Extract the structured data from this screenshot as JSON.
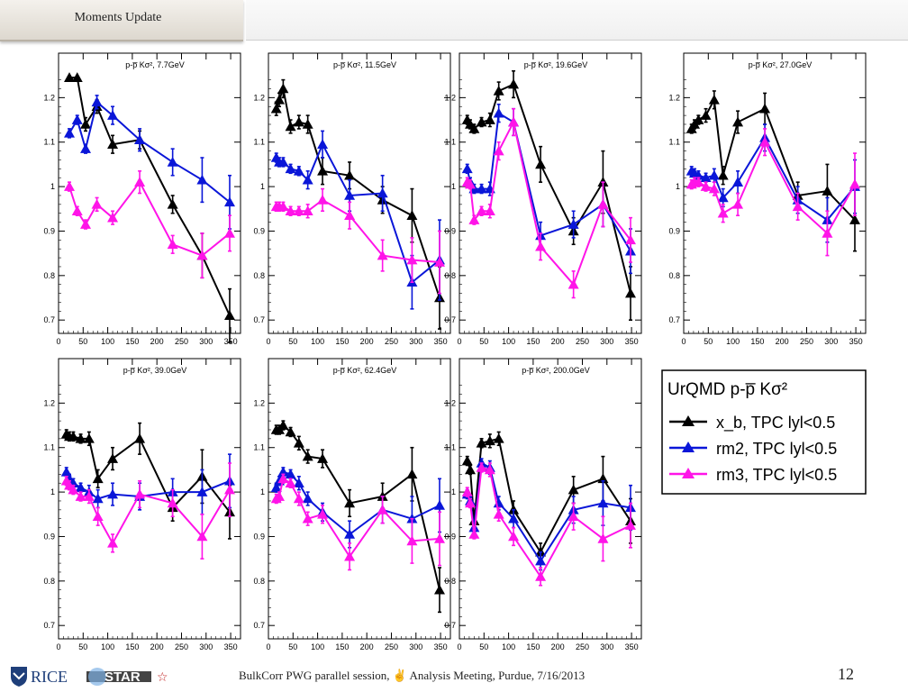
{
  "header": {
    "title": "Moments Update"
  },
  "footer": {
    "text": "BulkCorr PWG parallel session,  ✌  Analysis Meeting,  Purdue,  7/16/2013",
    "page": "12",
    "rice_logo": "RICE",
    "star_logo": "STAR"
  },
  "colors": {
    "xb": "#000000",
    "rm2": "#0a16d8",
    "rm3": "#ff14e8"
  },
  "legend": {
    "title": "UrQMD p-p̅ Kσ²",
    "entries": [
      {
        "series": "xb",
        "label": "x_b, TPC lyl<0.5"
      },
      {
        "series": "rm2",
        "label": "rm2, TPC lyl<0.5"
      },
      {
        "series": "rm3",
        "label": "rm3, TPC lyl<0.5"
      }
    ]
  },
  "chart_data": [
    {
      "type": "line",
      "title": "p-p̅ Kσ²,  7.7GeV",
      "x": [
        22,
        38,
        55,
        78,
        110,
        165,
        232,
        292,
        348
      ],
      "xlim": [
        0,
        370
      ],
      "ylim": [
        0.67,
        1.3
      ],
      "xticks": [
        0,
        50,
        100,
        150,
        200,
        250,
        300,
        350
      ],
      "yticks": [
        0.7,
        0.8,
        0.9,
        1,
        1.1,
        1.2
      ],
      "series": [
        {
          "id": "xb",
          "values": [
            1.245,
            1.245,
            1.14,
            1.18,
            1.095,
            1.105,
            0.96,
            0.845,
            0.71
          ],
          "err": [
            0,
            0,
            0.015,
            0.015,
            0.02,
            0.02,
            0.02,
            0.05,
            0.06
          ]
        },
        {
          "id": "rm2",
          "values": [
            1.12,
            1.15,
            1.085,
            1.19,
            1.16,
            1.105,
            1.055,
            1.015,
            0.965
          ],
          "err": [
            0.01,
            0.01,
            0.01,
            0.015,
            0.02,
            0.025,
            0.03,
            0.05,
            0.06
          ]
        },
        {
          "id": "rm3",
          "values": [
            1.0,
            0.945,
            0.915,
            0.96,
            0.93,
            1.01,
            0.87,
            0.845,
            0.895
          ],
          "err": [
            0.01,
            0.01,
            0.01,
            0.015,
            0.015,
            0.025,
            0.02,
            0.05,
            0.04
          ]
        }
      ]
    },
    {
      "type": "line",
      "title": "p-p̅ Kσ², 11.5GeV",
      "x": [
        16,
        22,
        30,
        45,
        62,
        80,
        110,
        165,
        232,
        292,
        348
      ],
      "xlim": [
        0,
        370
      ],
      "ylim": [
        0.67,
        1.3
      ],
      "xticks": [
        0,
        50,
        100,
        150,
        200,
        250,
        300,
        350
      ],
      "yticks": [
        0.7,
        0.8,
        0.9,
        1,
        1.1,
        1.2
      ],
      "series": [
        {
          "id": "xb",
          "values": [
            1.175,
            1.195,
            1.22,
            1.135,
            1.145,
            1.14,
            1.035,
            1.025,
            0.97,
            0.935,
            0.75
          ],
          "err": [
            0.015,
            0.015,
            0.02,
            0.015,
            0.015,
            0.02,
            0.03,
            0.03,
            0.03,
            0.06,
            0.07
          ]
        },
        {
          "id": "rm2",
          "values": [
            1.065,
            1.055,
            1.055,
            1.04,
            1.035,
            1.015,
            1.095,
            0.98,
            0.985,
            0.785,
            0.835
          ],
          "err": [
            0.01,
            0.01,
            0.01,
            0.01,
            0.01,
            0.02,
            0.03,
            0.035,
            0.04,
            0.06,
            0.09
          ]
        },
        {
          "id": "rm3",
          "values": [
            0.955,
            0.955,
            0.955,
            0.945,
            0.945,
            0.945,
            0.97,
            0.935,
            0.845,
            0.835,
            0.83
          ],
          "err": [
            0.01,
            0.01,
            0.01,
            0.01,
            0.01,
            0.015,
            0.025,
            0.03,
            0.035,
            0.05,
            0.07
          ]
        }
      ]
    },
    {
      "type": "line",
      "title": "p-p̅ Kσ², 19.6GeV",
      "x": [
        16,
        22,
        30,
        45,
        62,
        80,
        110,
        165,
        232,
        292,
        348
      ],
      "xlim": [
        0,
        370
      ],
      "ylim": [
        0.67,
        1.3
      ],
      "xticks": [
        0,
        50,
        100,
        150,
        200,
        250,
        300,
        350
      ],
      "yticks": [
        0.7,
        0.8,
        0.9,
        1,
        1.1,
        1.2
      ],
      "series": [
        {
          "id": "xb",
          "values": [
            1.15,
            1.14,
            1.13,
            1.145,
            1.15,
            1.215,
            1.23,
            1.05,
            0.9,
            1.01,
            0.76
          ],
          "err": [
            0.01,
            0.01,
            0.01,
            0.01,
            0.015,
            0.02,
            0.03,
            0.04,
            0.03,
            0.07,
            0.06
          ]
        },
        {
          "id": "rm2",
          "values": [
            1.04,
            1.01,
            0.995,
            0.995,
            0.995,
            1.165,
            1.145,
            0.89,
            0.915,
            0.96,
            0.855
          ],
          "err": [
            0.01,
            0.01,
            0.01,
            0.01,
            0.015,
            0.02,
            0.03,
            0.03,
            0.03,
            0.05,
            0.05
          ]
        },
        {
          "id": "rm3",
          "values": [
            1.01,
            1.005,
            0.925,
            0.945,
            0.945,
            1.08,
            1.145,
            0.865,
            0.78,
            0.96,
            0.88
          ],
          "err": [
            0.01,
            0.01,
            0.01,
            0.01,
            0.015,
            0.02,
            0.03,
            0.03,
            0.03,
            0.05,
            0.05
          ]
        }
      ]
    },
    {
      "type": "line",
      "title": "p-p̅ Kσ², 27.0GeV",
      "x": [
        16,
        22,
        30,
        45,
        62,
        80,
        110,
        165,
        232,
        292,
        348
      ],
      "xlim": [
        0,
        370
      ],
      "ylim": [
        0.67,
        1.3
      ],
      "xticks": [
        0,
        50,
        100,
        150,
        200,
        250,
        300,
        350
      ],
      "yticks": [
        0.7,
        0.8,
        0.9,
        1,
        1.1,
        1.2
      ],
      "series": [
        {
          "id": "xb",
          "values": [
            1.13,
            1.14,
            1.15,
            1.16,
            1.195,
            1.025,
            1.145,
            1.175,
            0.98,
            0.99,
            0.925
          ],
          "err": [
            0.01,
            0.01,
            0.01,
            0.015,
            0.02,
            0.02,
            0.025,
            0.035,
            0.03,
            0.06,
            0.07
          ]
        },
        {
          "id": "rm2",
          "values": [
            1.035,
            1.03,
            1.025,
            1.02,
            1.025,
            0.975,
            1.01,
            1.11,
            0.97,
            0.925,
            1.0
          ],
          "err": [
            0.01,
            0.01,
            0.01,
            0.01,
            0.015,
            0.02,
            0.025,
            0.03,
            0.03,
            0.05,
            0.06
          ]
        },
        {
          "id": "rm3",
          "values": [
            1.005,
            1.01,
            1.01,
            1.0,
            0.995,
            0.94,
            0.96,
            1.1,
            0.955,
            0.895,
            1.005
          ],
          "err": [
            0.01,
            0.01,
            0.01,
            0.01,
            0.015,
            0.02,
            0.025,
            0.03,
            0.03,
            0.05,
            0.07
          ]
        }
      ]
    },
    {
      "type": "line",
      "title": "p-p̅ Kσ², 39.0GeV",
      "x": [
        16,
        22,
        30,
        45,
        62,
        80,
        110,
        165,
        232,
        292,
        348
      ],
      "xlim": [
        0,
        370
      ],
      "ylim": [
        0.67,
        1.3
      ],
      "xticks": [
        0,
        50,
        100,
        150,
        200,
        250,
        300,
        350
      ],
      "yticks": [
        0.7,
        0.8,
        0.9,
        1,
        1.1,
        1.2
      ],
      "series": [
        {
          "id": "xb",
          "values": [
            1.13,
            1.125,
            1.125,
            1.12,
            1.12,
            1.03,
            1.075,
            1.12,
            0.965,
            1.035,
            0.955
          ],
          "err": [
            0.01,
            0.01,
            0.01,
            0.01,
            0.015,
            0.02,
            0.025,
            0.035,
            0.03,
            0.06,
            0.06
          ]
        },
        {
          "id": "rm2",
          "values": [
            1.045,
            1.03,
            1.02,
            1.01,
            1.0,
            0.985,
            0.995,
            0.99,
            1.0,
            1.0,
            1.025
          ],
          "err": [
            0.01,
            0.01,
            0.01,
            0.01,
            0.015,
            0.02,
            0.025,
            0.03,
            0.03,
            0.05,
            0.06
          ]
        },
        {
          "id": "rm3",
          "values": [
            1.025,
            1.015,
            1.005,
            0.99,
            0.99,
            0.945,
            0.885,
            0.995,
            0.975,
            0.9,
            1.005
          ],
          "err": [
            0.01,
            0.01,
            0.01,
            0.01,
            0.015,
            0.02,
            0.02,
            0.03,
            0.03,
            0.05,
            0.06
          ]
        }
      ]
    },
    {
      "type": "line",
      "title": "p-p̅ Kσ², 62.4GeV",
      "x": [
        16,
        22,
        30,
        45,
        62,
        80,
        110,
        165,
        232,
        292,
        348
      ],
      "xlim": [
        0,
        370
      ],
      "ylim": [
        0.67,
        1.3
      ],
      "xticks": [
        0,
        50,
        100,
        150,
        200,
        250,
        300,
        350
      ],
      "yticks": [
        0.7,
        0.8,
        0.9,
        1,
        1.1,
        1.2
      ],
      "series": [
        {
          "id": "xb",
          "values": [
            1.14,
            1.14,
            1.15,
            1.135,
            1.11,
            1.08,
            1.075,
            0.975,
            0.99,
            1.04,
            0.78
          ],
          "err": [
            0.01,
            0.01,
            0.01,
            0.01,
            0.015,
            0.015,
            0.02,
            0.03,
            0.03,
            0.06,
            0.05
          ]
        },
        {
          "id": "rm2",
          "values": [
            1.01,
            1.025,
            1.045,
            1.04,
            1.02,
            0.985,
            0.955,
            0.905,
            0.96,
            0.94,
            0.97
          ],
          "err": [
            0.01,
            0.01,
            0.01,
            0.01,
            0.015,
            0.015,
            0.02,
            0.03,
            0.03,
            0.05,
            0.06
          ]
        },
        {
          "id": "rm3",
          "values": [
            0.985,
            0.99,
            1.03,
            1.02,
            0.985,
            0.94,
            0.95,
            0.855,
            0.96,
            0.89,
            0.895
          ],
          "err": [
            0.01,
            0.01,
            0.01,
            0.01,
            0.015,
            0.015,
            0.02,
            0.03,
            0.03,
            0.05,
            0.06
          ]
        }
      ]
    },
    {
      "type": "line",
      "title": "p-p̅ Kσ², 200.0GeV",
      "x": [
        16,
        22,
        30,
        45,
        62,
        80,
        110,
        165,
        232,
        292,
        348
      ],
      "xlim": [
        0,
        370
      ],
      "ylim": [
        0.67,
        1.3
      ],
      "xticks": [
        0,
        50,
        100,
        150,
        200,
        250,
        300,
        350
      ],
      "yticks": [
        0.7,
        0.8,
        0.9,
        1,
        1.1,
        1.2
      ],
      "series": [
        {
          "id": "xb",
          "values": [
            1.07,
            1.05,
            0.935,
            1.11,
            1.115,
            1.12,
            0.96,
            0.865,
            1.005,
            1.03,
            0.935
          ],
          "err": [
            0.01,
            0.01,
            0.01,
            0.01,
            0.015,
            0.015,
            0.02,
            0.02,
            0.03,
            0.05,
            0.05
          ]
        },
        {
          "id": "rm2",
          "values": [
            0.995,
            0.98,
            0.92,
            1.065,
            1.055,
            0.975,
            0.94,
            0.845,
            0.96,
            0.975,
            0.965
          ],
          "err": [
            0.01,
            0.01,
            0.01,
            0.01,
            0.015,
            0.015,
            0.02,
            0.02,
            0.03,
            0.05,
            0.05
          ]
        },
        {
          "id": "rm3",
          "values": [
            1.0,
            0.975,
            0.905,
            1.055,
            1.05,
            0.95,
            0.9,
            0.81,
            0.945,
            0.895,
            0.925
          ],
          "err": [
            0.01,
            0.01,
            0.01,
            0.01,
            0.015,
            0.015,
            0.02,
            0.02,
            0.03,
            0.05,
            0.05
          ]
        }
      ]
    }
  ]
}
